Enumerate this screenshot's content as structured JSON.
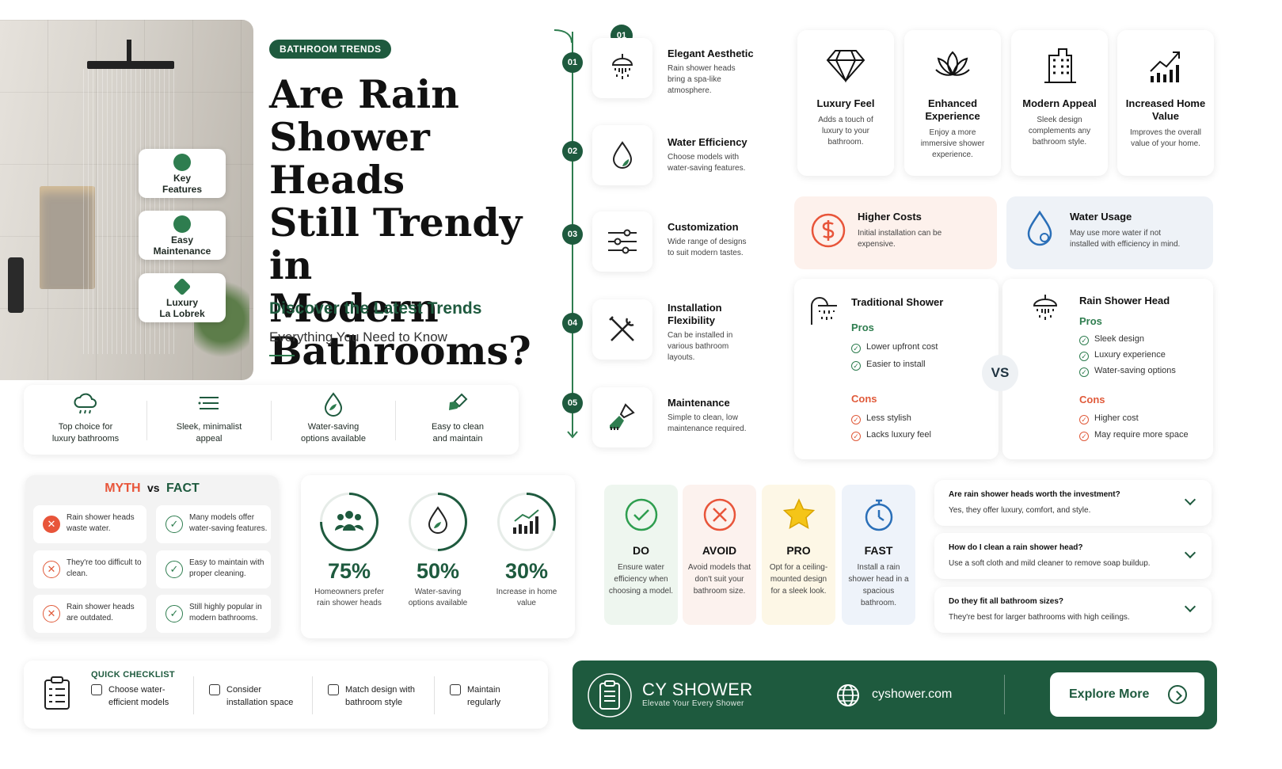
{
  "hero": {
    "badges": [
      {
        "label_line1": "Key",
        "label_line2": "Features",
        "icon": "leaf-icon"
      },
      {
        "label_line1": "Easy",
        "label_line2": "Maintenance",
        "icon": "leaf-icon"
      },
      {
        "label_line1": "Luxury",
        "label_line2": "La Lobrek",
        "icon": "gem-icon"
      }
    ]
  },
  "header": {
    "tag": "BATHROOM TRENDS",
    "title_line1": "Are Rain",
    "title_line2": "Shower Heads",
    "title_line3": "Still Trendy in",
    "title_line4": "Modern",
    "title_line5": "Bathrooms?",
    "subtitle": "Discover the Latest Trends",
    "tagline": "Everything You Need to Know"
  },
  "highlights": [
    {
      "icon": "rain-cloud-icon",
      "line1": "Top choice for",
      "line2": "luxury bathrooms"
    },
    {
      "icon": "lines-icon",
      "line1": "Sleek, minimalist",
      "line2": "appeal"
    },
    {
      "icon": "water-leaf-icon",
      "line1": "Water-saving",
      "line2": "options available"
    },
    {
      "icon": "brush-icon",
      "line1": "Easy to clean",
      "line2": "and maintain"
    }
  ],
  "timeline": {
    "top_badge": "01",
    "steps": [
      {
        "num": "01",
        "title": "Elegant Aesthetic",
        "desc": "Rain shower heads bring a spa-like atmosphere.",
        "icon": "shower-head-icon"
      },
      {
        "num": "02",
        "title": "Water Efficiency",
        "desc": "Choose models with water-saving features.",
        "icon": "water-drop-icon"
      },
      {
        "num": "03",
        "title": "Customization",
        "desc": "Wide range of designs to suit modern tastes.",
        "icon": "sliders-icon"
      },
      {
        "num": "04",
        "title_line1": "Installation",
        "title_line2": "Flexibility",
        "desc": "Can be installed in various bathroom layouts.",
        "icon": "tools-icon"
      },
      {
        "num": "05",
        "title": "Maintenance",
        "desc": "Simple to clean, low maintenance required.",
        "icon": "cleaning-brush-icon"
      }
    ]
  },
  "features": [
    {
      "title": "Luxury Feel",
      "desc": "Adds a touch of luxury to your bathroom.",
      "icon": "diamond-icon"
    },
    {
      "title": "Enhanced Experience",
      "desc": "Enjoy a more immersive shower experience.",
      "icon": "lotus-icon"
    },
    {
      "title": "Modern Appeal",
      "desc": "Sleek design complements any bathroom style.",
      "icon": "building-icon"
    },
    {
      "title": "Increased Home Value",
      "desc": "Improves the overall value of your home.",
      "icon": "growth-chart-icon"
    }
  ],
  "cons": [
    {
      "title": "Higher Costs",
      "desc": "Initial installation can be expensive.",
      "icon": "dollar-icon",
      "color": "#fdf1ec"
    },
    {
      "title": "Water Usage",
      "desc": "May use more water if not installed with efficiency in mind.",
      "icon": "water-drop-icon",
      "color": "#eef2f7"
    }
  ],
  "comparison": {
    "vs": "VS",
    "traditional": {
      "title": "Traditional Shower",
      "pros_label": "Pros",
      "pros": [
        "Lower upfront cost",
        "Easier to install"
      ],
      "cons_label": "Cons",
      "cons": [
        "Less stylish",
        "Lacks luxury feel"
      ]
    },
    "rain": {
      "title": "Rain Shower Head",
      "pros_label": "Pros",
      "pros": [
        "Sleek design",
        "Luxury experience",
        "Water-saving options"
      ],
      "cons_label": "Cons",
      "cons": [
        "Higher cost",
        "May require more space"
      ]
    }
  },
  "myth_fact": {
    "myth_label": "MYTH",
    "vs_label": "vs",
    "fact_label": "FACT",
    "rows": [
      {
        "myth": "Rain shower heads waste water.",
        "fact": "Many models offer water-saving features."
      },
      {
        "myth": "They're too difficult to clean.",
        "fact": "Easy to maintain with proper cleaning."
      },
      {
        "myth": "Rain shower heads are outdated.",
        "fact": "Still highly popular in modern bathrooms."
      }
    ]
  },
  "stats": [
    {
      "value": "75%",
      "label": "Homeowners prefer rain shower heads",
      "fraction": 0.75,
      "icon": "people-icon"
    },
    {
      "value": "50%",
      "label": "Water-saving options available",
      "fraction": 0.5,
      "icon": "water-leaf-icon"
    },
    {
      "value": "30%",
      "label": "Increase in home value",
      "fraction": 0.3,
      "icon": "bar-chart-icon"
    }
  ],
  "tips": [
    {
      "title": "DO",
      "desc": "Ensure water efficiency when choosing a model.",
      "icon": "check-circle-icon",
      "color": "#eef6ef"
    },
    {
      "title": "AVOID",
      "desc": "Avoid models that don't suit your bathroom size.",
      "icon": "x-circle-icon",
      "color": "#fcf2ee"
    },
    {
      "title": "PRO",
      "desc": "Opt for a ceiling-mounted design for a sleek look.",
      "icon": "star-icon",
      "color": "#fdf7e6"
    },
    {
      "title": "FAST",
      "desc": "Install a rain shower head in a spacious bathroom.",
      "icon": "stopwatch-icon",
      "color": "#eef3fa"
    }
  ],
  "faq": [
    {
      "q": "Are rain shower heads worth the investment?",
      "a": "Yes, they offer luxury, comfort, and style."
    },
    {
      "q": "How do I clean a rain shower head?",
      "a": "Use a soft cloth and mild cleaner to remove soap buildup."
    },
    {
      "q": "Do they fit all bathroom sizes?",
      "a": "They're best for larger bathrooms with high ceilings."
    }
  ],
  "checklist": {
    "title": "QUICK CHECKLIST",
    "items": [
      {
        "line1": "Choose water-",
        "line2": "efficient models"
      },
      {
        "line1": "Consider",
        "line2": "installation space"
      },
      {
        "line1": "Match design with",
        "line2": "bathroom style"
      },
      {
        "line1": "Maintain",
        "line2": "regularly"
      }
    ]
  },
  "brand": {
    "name": "CY SHOWER",
    "slogan": "Elevate Your Every Shower",
    "url": "cyshower.com",
    "cta": "Explore More"
  },
  "colors": {
    "brand_green": "#1e5a3e",
    "accent_orange": "#e8553a",
    "page_bg": "#ffffff"
  }
}
